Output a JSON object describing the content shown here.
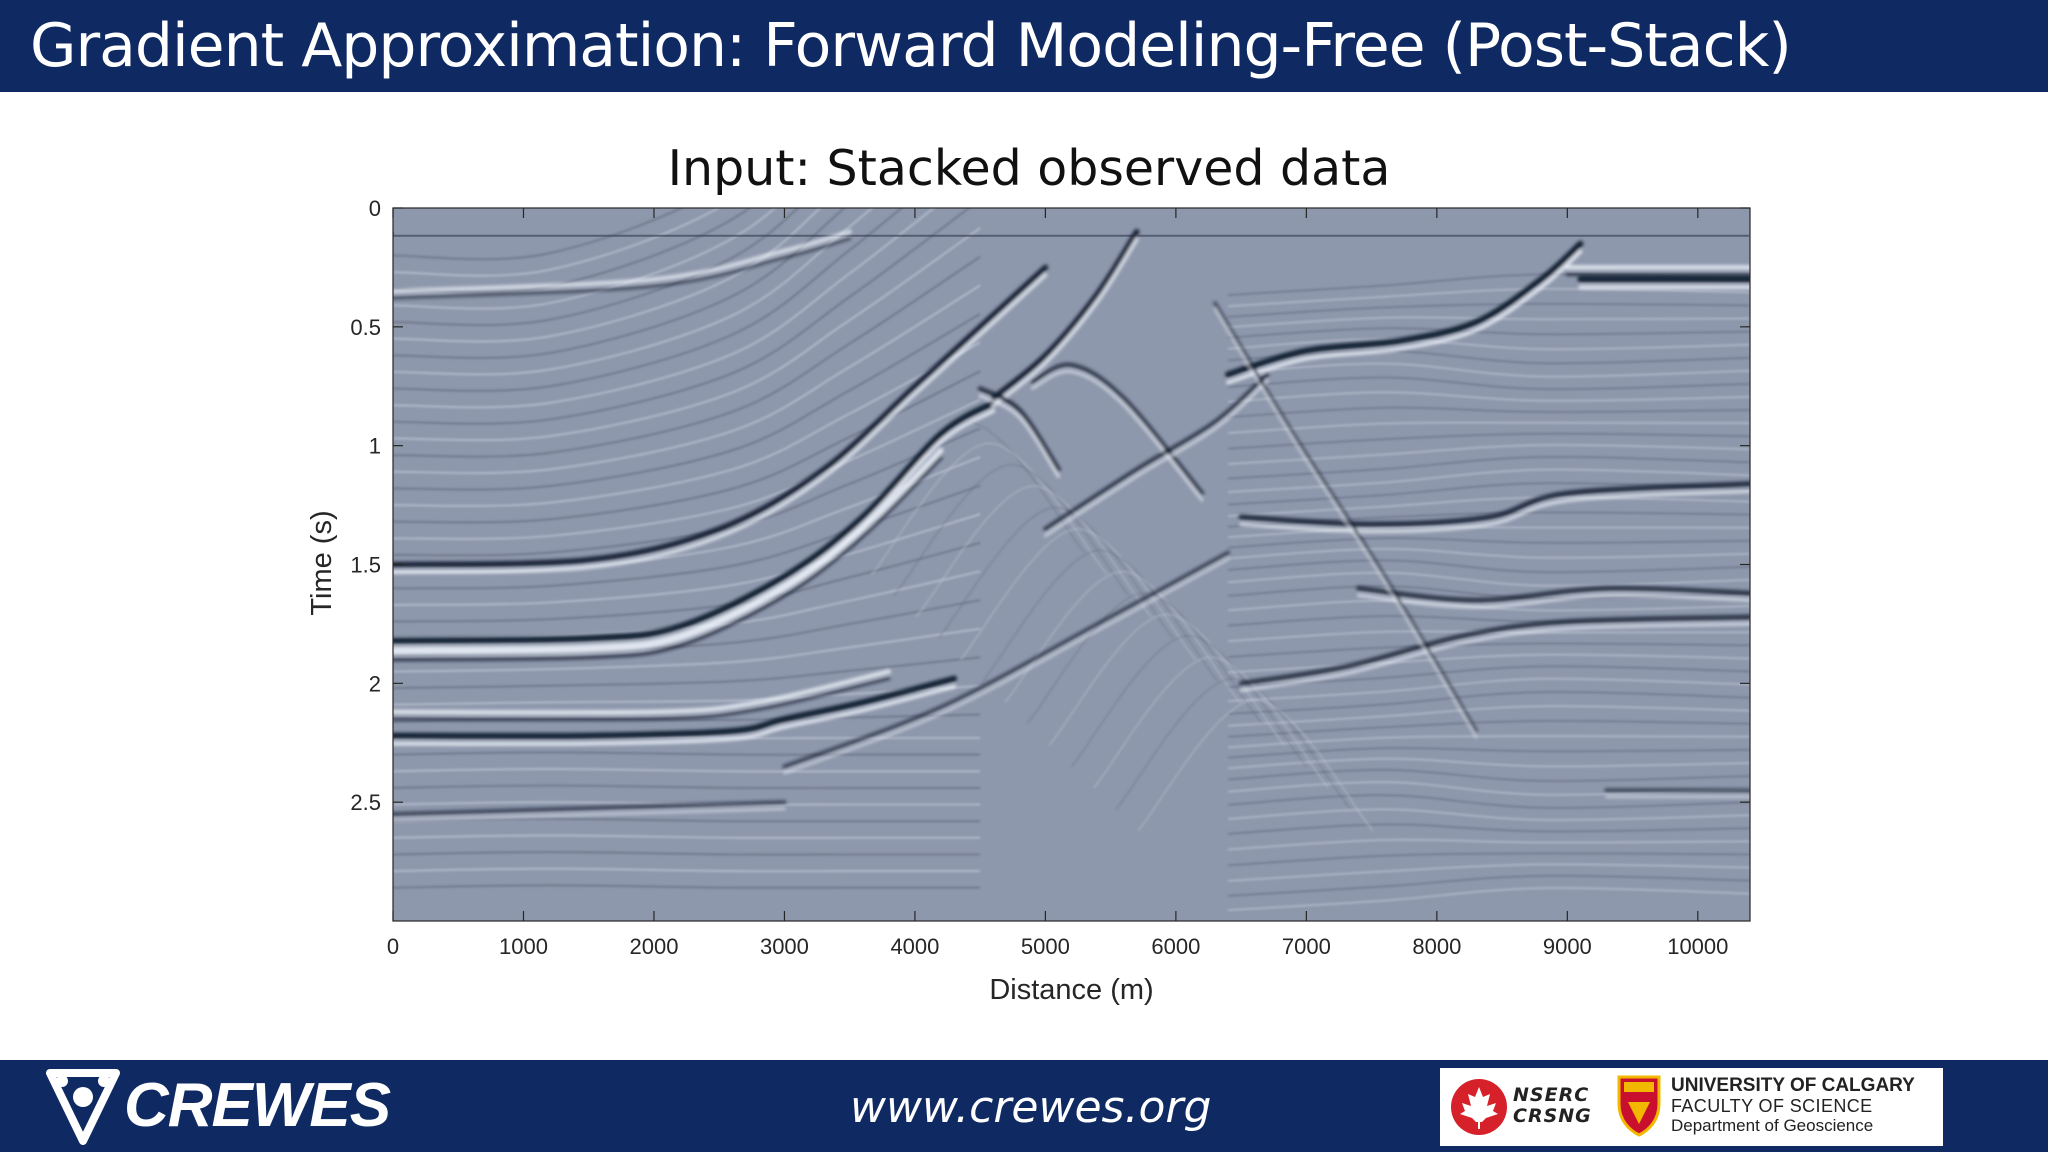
{
  "slide": {
    "title": "Gradient Approximation: Forward Modeling-Free (Post-Stack)",
    "footer_url": "www.crewes.org",
    "logos": {
      "crewes": "CREWES",
      "nserc": [
        "NSERC",
        "CRSNG"
      ],
      "university": [
        "UNIVERSITY OF CALGARY",
        "FACULTY OF SCIENCE",
        "Department of Geoscience"
      ]
    },
    "colors": {
      "banner": "#0f2a63",
      "seismic_background": "#8e98ac"
    }
  },
  "chart_data": {
    "type": "heatmap",
    "title": "Input: Stacked observed data",
    "xlabel": "Distance (m)",
    "ylabel": "Time (s)",
    "xlim": [
      0,
      10400
    ],
    "ylim": [
      0,
      3.0
    ],
    "y_reversed": true,
    "colormap": "gray seismic wiggle (blue-gray background)",
    "x_ticks": [
      0,
      1000,
      2000,
      3000,
      4000,
      5000,
      6000,
      7000,
      8000,
      9000,
      10000
    ],
    "y_ticks": [
      0,
      0.5,
      1,
      1.5,
      2,
      2.5
    ],
    "x_tick_labels": [
      "0",
      "1000",
      "2000",
      "3000",
      "4000",
      "5000",
      "6000",
      "7000",
      "8000",
      "9000",
      "10000"
    ],
    "y_tick_labels": [
      "0",
      "0.5",
      "1",
      "1.5",
      "2",
      "2.5"
    ],
    "reflectors": [
      {
        "points": [
          [
            0,
            1.82
          ],
          [
            1500,
            1.81
          ],
          [
            2200,
            1.76
          ],
          [
            3000,
            1.55
          ],
          [
            3600,
            1.3
          ],
          [
            4200,
            0.95
          ],
          [
            4600,
            0.82
          ]
        ],
        "strength": 1.0
      },
      {
        "points": [
          [
            0,
            1.87
          ],
          [
            1500,
            1.86
          ],
          [
            2200,
            1.81
          ],
          [
            3000,
            1.6
          ],
          [
            3600,
            1.35
          ],
          [
            4200,
            1.02
          ]
        ],
        "strength": -0.8
      },
      {
        "points": [
          [
            0,
            1.5
          ],
          [
            1500,
            1.48
          ],
          [
            2500,
            1.35
          ],
          [
            3300,
            1.1
          ],
          [
            4000,
            0.75
          ],
          [
            4500,
            0.5
          ],
          [
            5000,
            0.25
          ]
        ],
        "strength": 0.9
      },
      {
        "points": [
          [
            0,
            2.22
          ],
          [
            1500,
            2.22
          ],
          [
            2600,
            2.2
          ],
          [
            3000,
            2.15
          ],
          [
            3600,
            2.08
          ],
          [
            4300,
            1.98
          ]
        ],
        "strength": 1.0
      },
      {
        "points": [
          [
            0,
            2.12
          ],
          [
            2000,
            2.12
          ],
          [
            2800,
            2.08
          ],
          [
            3800,
            1.95
          ]
        ],
        "strength": -0.7
      },
      {
        "points": [
          [
            6400,
            0.7
          ],
          [
            7000,
            0.6
          ],
          [
            7700,
            0.56
          ],
          [
            8300,
            0.48
          ],
          [
            8800,
            0.3
          ],
          [
            9100,
            0.15
          ]
        ],
        "strength": 1.0
      },
      {
        "points": [
          [
            9100,
            0.3
          ],
          [
            10400,
            0.3
          ]
        ],
        "strength": 1.0
      },
      {
        "points": [
          [
            9000,
            0.25
          ],
          [
            10400,
            0.25
          ]
        ],
        "strength": -0.7
      },
      {
        "points": [
          [
            6500,
            1.3
          ],
          [
            7500,
            1.33
          ],
          [
            8400,
            1.3
          ],
          [
            9000,
            1.2
          ],
          [
            10400,
            1.16
          ]
        ],
        "strength": 0.8
      },
      {
        "points": [
          [
            6500,
            2.0
          ],
          [
            7300,
            1.93
          ],
          [
            8200,
            1.8
          ],
          [
            9000,
            1.74
          ],
          [
            10400,
            1.72
          ]
        ],
        "strength": 0.7
      },
      {
        "points": [
          [
            7400,
            1.6
          ],
          [
            8300,
            1.65
          ],
          [
            9300,
            1.6
          ],
          [
            10400,
            1.62
          ]
        ],
        "strength": 0.7
      },
      {
        "points": [
          [
            4600,
            0.8
          ],
          [
            5000,
            0.62
          ],
          [
            5400,
            0.36
          ],
          [
            5700,
            0.1
          ]
        ],
        "strength": 0.9
      },
      {
        "points": [
          [
            4500,
            0.76
          ],
          [
            4800,
            0.85
          ],
          [
            5100,
            1.1
          ]
        ],
        "strength": 0.7
      },
      {
        "points": [
          [
            4900,
            0.73
          ],
          [
            5200,
            0.66
          ],
          [
            5600,
            0.8
          ],
          [
            6200,
            1.2
          ]
        ],
        "strength": 0.6
      },
      {
        "points": [
          [
            5000,
            1.35
          ],
          [
            5700,
            1.1
          ],
          [
            6300,
            0.9
          ],
          [
            6700,
            0.7
          ]
        ],
        "strength": 0.6
      },
      {
        "points": [
          [
            6300,
            0.4
          ],
          [
            6900,
            0.95
          ],
          [
            7600,
            1.55
          ],
          [
            8300,
            2.2
          ]
        ],
        "strength": 0.4
      },
      {
        "points": [
          [
            3000,
            2.35
          ],
          [
            4200,
            2.1
          ],
          [
            5400,
            1.75
          ],
          [
            6400,
            1.45
          ]
        ],
        "strength": 0.5
      },
      {
        "points": [
          [
            0,
            0.35
          ],
          [
            2000,
            0.3
          ],
          [
            3000,
            0.18
          ],
          [
            3500,
            0.1
          ]
        ],
        "strength": -0.6
      },
      {
        "points": [
          [
            0,
            2.55
          ],
          [
            3000,
            2.5
          ]
        ],
        "strength": 0.5
      },
      {
        "points": [
          [
            9300,
            2.45
          ],
          [
            10400,
            2.45
          ]
        ],
        "strength": 0.5
      }
    ],
    "background_layering": {
      "left_block": {
        "x_range": [
          0,
          4500
        ],
        "t_range": [
          0.2,
          2.9
        ],
        "spacing_s": 0.07,
        "dip_start_x": 1200
      },
      "right_block": {
        "x_range": [
          6400,
          10400
        ],
        "t_range": [
          0.3,
          2.9
        ],
        "spacing_s": 0.055
      },
      "top_noise_time_s": 0.1
    }
  }
}
